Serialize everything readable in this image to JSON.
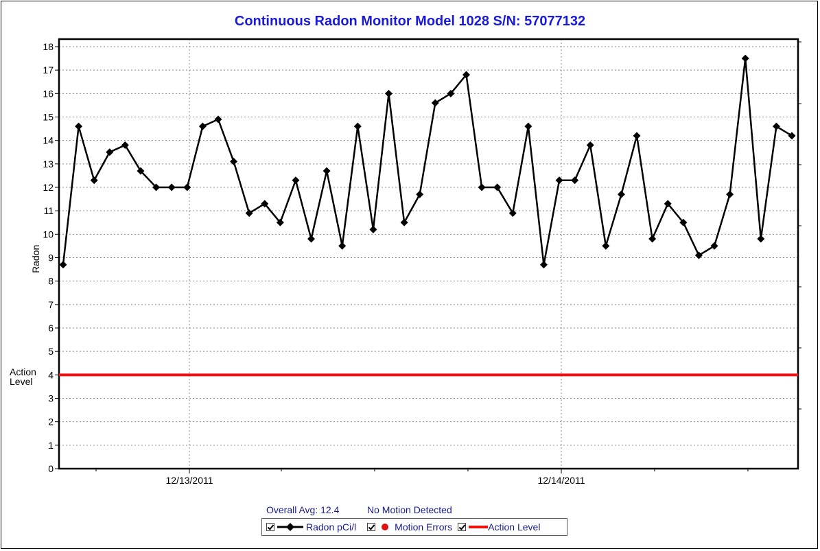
{
  "chart_data": {
    "type": "line",
    "title": "Continuous Radon Monitor Model 1028 S/N: 57077132",
    "ylabel": "Radon",
    "ylim": [
      0,
      18
    ],
    "y_ticks": [
      0,
      1,
      2,
      3,
      4,
      5,
      6,
      7,
      8,
      9,
      10,
      11,
      12,
      13,
      14,
      15,
      16,
      17,
      18
    ],
    "x_tick_labels": [
      "12/13/2011",
      "12/14/2011"
    ],
    "grid": true,
    "series": [
      {
        "name": "Radon pCi/l",
        "color": "#000000",
        "marker": "diamond",
        "values": [
          8.7,
          14.6,
          12.3,
          13.5,
          13.8,
          12.7,
          12.0,
          12.0,
          12.0,
          14.6,
          14.9,
          13.1,
          10.9,
          11.3,
          10.5,
          12.3,
          9.8,
          12.7,
          9.5,
          14.6,
          10.2,
          16.0,
          10.5,
          11.7,
          15.6,
          16.0,
          16.8,
          12.0,
          12.0,
          10.9,
          14.6,
          8.7,
          12.3,
          12.3,
          13.8,
          9.5,
          11.7,
          14.2,
          9.8,
          11.3,
          10.5,
          9.1,
          9.5,
          11.7,
          17.5,
          9.8,
          14.6,
          14.2
        ]
      }
    ],
    "action_level": {
      "label": "Action Level",
      "value": 4,
      "color": "#ee1111"
    },
    "legend_position": "bottom"
  },
  "labels": {
    "action_level_side": "Action\nLevel",
    "overall_avg": "Overall Avg: 12.4",
    "motion_status": "No Motion Detected"
  },
  "legend": {
    "radon": "Radon pCi/l",
    "motion_errors": "Motion Errors",
    "action_level": "Action Level"
  },
  "colors": {
    "title": "#1a1adc",
    "motion_marker": "#dd1111",
    "action_line": "#ee1111"
  }
}
